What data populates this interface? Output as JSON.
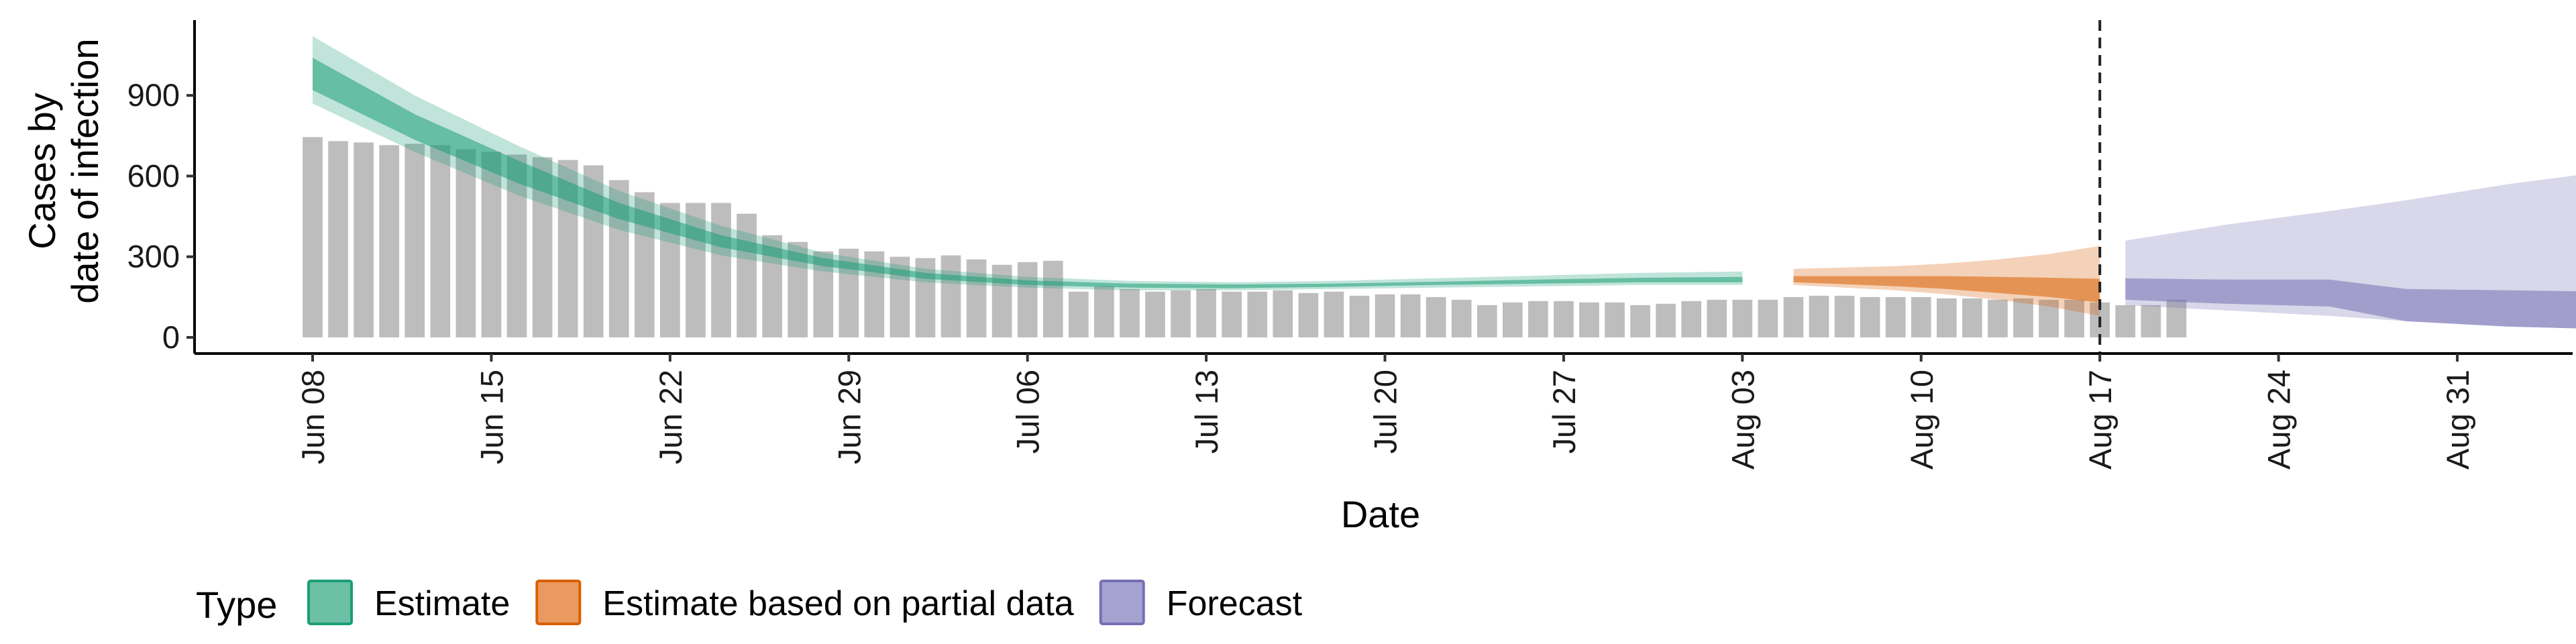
{
  "chart_data": {
    "type": "bar",
    "xlabel": "Date",
    "ylabel_line1": "Cases by",
    "ylabel_line2": "date of infection",
    "ylim": [
      -60,
      1180
    ],
    "y_ticks": [
      0,
      300,
      600,
      900
    ],
    "x_ticks": [
      "Jun 08",
      "Jun 15",
      "Jun 22",
      "Jun 29",
      "Jul 06",
      "Jul 13",
      "Jul 20",
      "Jul 27",
      "Aug 03",
      "Aug 10",
      "Aug 17",
      "Aug 24",
      "Aug 31"
    ],
    "start_date": "Jun 08",
    "vline_date": "Aug 17",
    "bars": [
      745,
      730,
      725,
      715,
      720,
      715,
      700,
      690,
      680,
      670,
      660,
      640,
      585,
      540,
      500,
      500,
      500,
      460,
      380,
      355,
      320,
      330,
      320,
      300,
      295,
      305,
      290,
      270,
      280,
      285,
      170,
      190,
      180,
      170,
      175,
      180,
      170,
      170,
      175,
      165,
      170,
      155,
      160,
      160,
      150,
      140,
      120,
      130,
      135,
      135,
      130,
      130,
      120,
      125,
      135,
      140,
      140,
      140,
      150,
      155,
      155,
      150,
      150,
      150,
      145,
      145,
      140,
      145,
      140,
      140,
      130,
      120,
      120,
      140
    ],
    "bands": {
      "estimate": {
        "x": [
          0,
          4,
          8,
          12,
          16,
          20,
          24,
          28,
          32,
          36,
          40,
          44,
          48,
          52,
          56
        ],
        "outer_lo": [
          870,
          690,
          530,
          400,
          305,
          245,
          205,
          185,
          175,
          175,
          180,
          185,
          190,
          195,
          195
        ],
        "outer_hi": [
          1120,
          900,
          715,
          545,
          415,
          315,
          255,
          225,
          210,
          205,
          210,
          220,
          230,
          240,
          245
        ],
        "inner_lo": [
          920,
          735,
          575,
          440,
          335,
          265,
          218,
          195,
          185,
          183,
          188,
          195,
          200,
          205,
          205
        ],
        "inner_hi": [
          1040,
          830,
          660,
          500,
          380,
          295,
          240,
          212,
          200,
          197,
          200,
          207,
          215,
          222,
          225
        ]
      },
      "partial": {
        "x": [
          58,
          60,
          62,
          64,
          66,
          68,
          70
        ],
        "outer_lo": [
          195,
          185,
          175,
          160,
          140,
          115,
          80
        ],
        "outer_hi": [
          255,
          260,
          265,
          275,
          290,
          310,
          340
        ],
        "inner_lo": [
          205,
          198,
          190,
          180,
          165,
          150,
          130
        ],
        "inner_hi": [
          228,
          228,
          228,
          228,
          225,
          222,
          218
        ]
      },
      "forecast": {
        "x": [
          71,
          75,
          79,
          82,
          86,
          90,
          94
        ],
        "outer_lo": [
          120,
          100,
          80,
          60,
          40,
          30,
          10
        ],
        "outer_hi": [
          360,
          420,
          470,
          510,
          570,
          620,
          680
        ],
        "inner_lo": [
          140,
          125,
          115,
          60,
          40,
          30,
          20
        ],
        "inner_hi": [
          220,
          215,
          215,
          180,
          175,
          170,
          165
        ]
      }
    },
    "legend": {
      "title": "Type",
      "placement": "bottom-left",
      "items": [
        {
          "label": "Estimate",
          "fill": "#6cc0a4",
          "stroke": "#1b9e77"
        },
        {
          "label": "Estimate based on partial data",
          "fill": "#eb9a5f",
          "stroke": "#d95f02"
        },
        {
          "label": "Forecast",
          "fill": "#a5a2d0",
          "stroke": "#7570b3"
        }
      ]
    },
    "colors": {
      "bar": "#bdbdbd",
      "estimate": "#1b9e77",
      "partial": "#d95f02",
      "forecast": "#7570b3"
    }
  }
}
